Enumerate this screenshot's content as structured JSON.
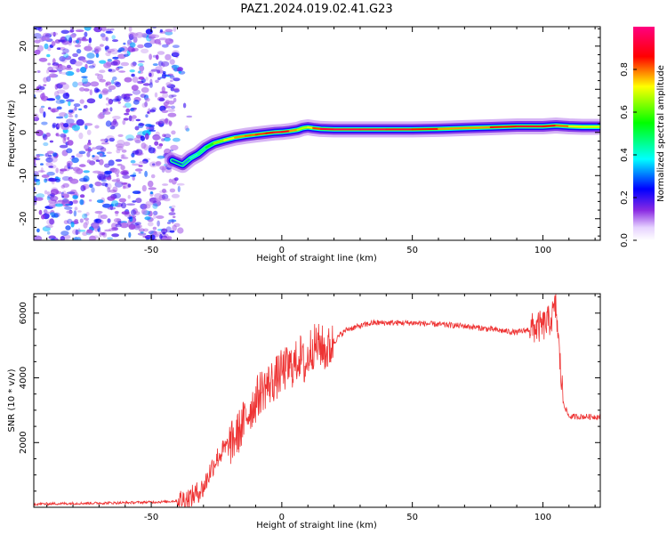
{
  "chart_data": [
    {
      "type": "heatmap",
      "title": "PAZ1.2024.019.02.41.G23",
      "xlabel": "Height of straight line (km)",
      "ylabel": "Frequency (Hz)",
      "xlim": [
        -95,
        122
      ],
      "ylim": [
        -25,
        24.5
      ],
      "xticks": [
        -50,
        0,
        50,
        100
      ],
      "yticks": [
        -20,
        -10,
        0,
        10,
        20
      ],
      "colorbar": {
        "label": "Normalized spectral amplitude",
        "range": [
          0,
          1
        ],
        "ticks": [
          "0.0",
          "0.2",
          "0.4",
          "0.6",
          "0.8"
        ],
        "colormap": [
          "#ffffff",
          "#8a2be2",
          "#0000ff",
          "#00ffff",
          "#00ff00",
          "#ffff00",
          "#ff0000",
          "#ff0080"
        ]
      },
      "ridge": {
        "x": [
          -42,
          -38,
          -35,
          -32,
          -29,
          -26,
          -22,
          -18,
          -14,
          -10,
          -6,
          -3,
          0,
          3,
          6,
          8,
          10,
          12,
          15,
          20,
          30,
          40,
          50,
          60,
          70,
          80,
          90,
          100,
          105,
          110,
          115,
          122
        ],
        "y": [
          -6.5,
          -7.5,
          -6.0,
          -5.0,
          -3.5,
          -2.5,
          -1.8,
          -1.2,
          -0.8,
          -0.5,
          -0.2,
          0.0,
          0.1,
          0.3,
          0.6,
          1.0,
          1.2,
          1.0,
          0.8,
          0.7,
          0.7,
          0.7,
          0.7,
          0.8,
          1.0,
          1.2,
          1.4,
          1.4,
          1.6,
          1.4,
          1.3,
          1.3
        ],
        "amplitude": [
          0.3,
          0.35,
          0.4,
          0.45,
          0.5,
          0.6,
          0.7,
          0.75,
          0.8,
          0.8,
          0.85,
          0.9,
          0.95,
          0.85,
          0.7,
          0.65,
          0.7,
          0.75,
          0.9,
          0.95,
          0.95,
          0.95,
          0.9,
          0.8,
          0.75,
          0.8,
          0.9,
          0.9,
          0.85,
          0.75,
          0.7,
          0.7
        ]
      },
      "scatter_region": {
        "x": [
          -95,
          -40
        ],
        "y": [
          -25,
          24.5
        ],
        "amplitude_range": [
          0,
          0.25
        ]
      }
    },
    {
      "type": "line",
      "xlabel": "Height of straight line (km)",
      "ylabel": "SNR (10 * v/v)",
      "xlim": [
        -95,
        122
      ],
      "ylim": [
        0,
        6600
      ],
      "xticks": [
        -50,
        0,
        50,
        100
      ],
      "yticks": [
        2000,
        4000,
        6000
      ],
      "color": "#ee3333",
      "x": [
        -95,
        -80,
        -60,
        -45,
        -40,
        -35,
        -30,
        -27,
        -25,
        -22,
        -19,
        -16,
        -13,
        -10,
        -8,
        -5,
        -2,
        0,
        2,
        5,
        7,
        9,
        11,
        13,
        15,
        17,
        19,
        22,
        25,
        30,
        35,
        40,
        50,
        60,
        70,
        80,
        90,
        95,
        100,
        103,
        105,
        107,
        108,
        110,
        115,
        122
      ],
      "y": [
        100,
        120,
        140,
        170,
        200,
        300,
        600,
        1200,
        1500,
        1800,
        2000,
        2400,
        2900,
        3300,
        3600,
        3800,
        4000,
        4200,
        4300,
        4400,
        4700,
        4300,
        4900,
        5000,
        5000,
        4800,
        5000,
        5300,
        5500,
        5600,
        5700,
        5700,
        5700,
        5650,
        5600,
        5500,
        5400,
        5500,
        5600,
        5800,
        6200,
        4000,
        3200,
        2800,
        2800,
        2800
      ]
    }
  ]
}
